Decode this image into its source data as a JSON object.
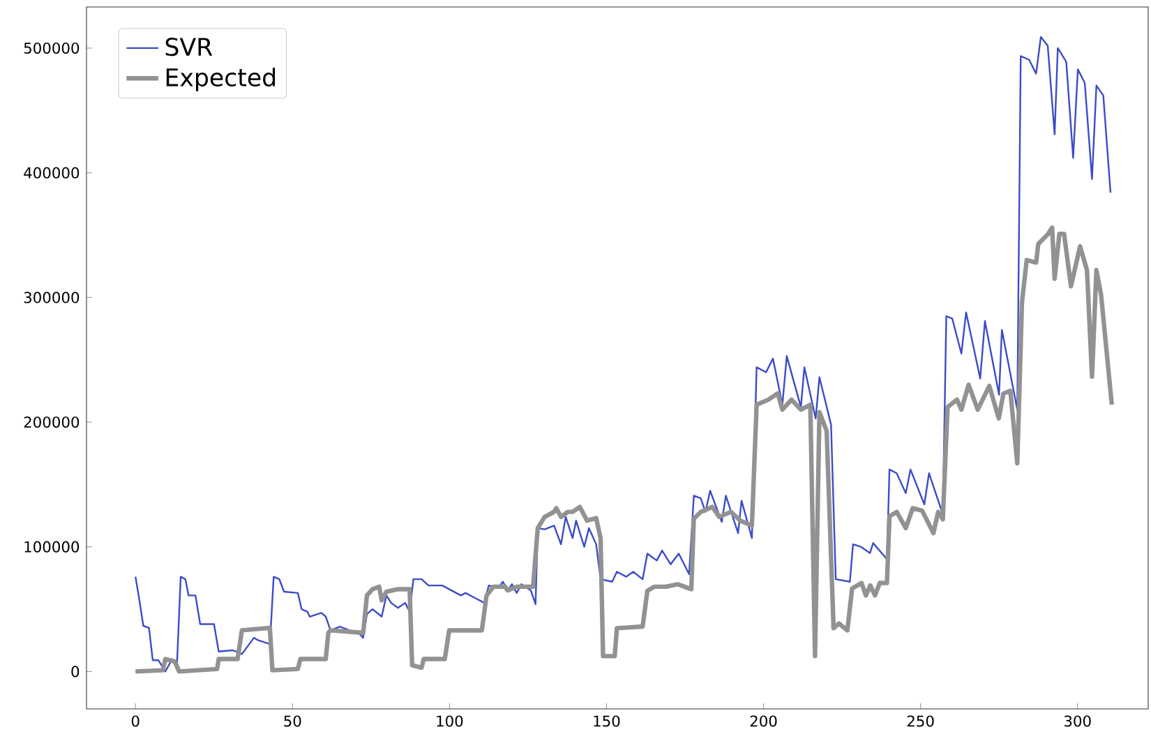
{
  "chart_data": {
    "type": "line",
    "xlim": [
      -15.6,
      322.5
    ],
    "ylim": [
      -30000,
      533000
    ],
    "xticks": [
      0,
      50,
      100,
      150,
      200,
      250,
      300
    ],
    "yticks": [
      0,
      100000,
      200000,
      300000,
      400000,
      500000
    ],
    "legend": "top left",
    "marker": "none",
    "line_style": "solid",
    "grid": false,
    "series": [
      {
        "name": "SVR",
        "color": "#3b4cc8",
        "x": [
          0,
          1,
          2.5,
          4.3,
          5.5,
          7.3,
          9.5,
          11.7,
          13.2,
          14.4,
          15.9,
          16.9,
          19.1,
          20.6,
          25,
          26.5,
          31,
          33.9,
          37.7,
          39.1,
          42.8,
          44,
          45.8,
          47.3,
          51.7,
          52.9,
          54.7,
          55.5,
          59.2,
          60.6,
          62.1,
          65.1,
          68.1,
          71,
          72.5,
          73.7,
          75.5,
          78.4,
          79.9,
          81.4,
          83.6,
          85.9,
          87.3,
          88.5,
          91.1,
          93.3,
          97.7,
          103.6,
          105.1,
          108.1,
          111.1,
          112.5,
          115.5,
          117,
          118.5,
          119.9,
          121.4,
          122.9,
          125.9,
          127.4,
          128.1,
          130.3,
          133.3,
          135.5,
          137,
          139.2,
          140.3,
          142.9,
          144.4,
          146.7,
          148.1,
          151.8,
          153.3,
          156.3,
          158.5,
          161.5,
          163,
          166,
          167.7,
          170.4,
          173,
          176.3,
          177.8,
          180,
          181.5,
          183,
          186.7,
          188,
          191.9,
          193,
          196.3,
          197.8,
          200.8,
          203,
          206,
          207.4,
          211.9,
          213,
          216.6,
          217.8,
          221.5,
          223,
          227.5,
          228.5,
          231,
          233.9,
          234.9,
          239.3,
          240.1,
          242.4,
          245.3,
          246.8,
          251.2,
          252.7,
          257.1,
          258.2,
          260.1,
          263,
          264.5,
          269,
          270.5,
          275,
          275.9,
          280.8,
          281.9,
          284.6,
          286.8,
          288.3,
          290.5,
          292.7,
          293.7,
          296.4,
          298.6,
          300.1,
          302.3,
          304.6,
          306,
          308.2,
          310.5
        ],
        "values": [
          76000,
          61000,
          36600,
          35000,
          9000,
          9000,
          0,
          10000,
          5000,
          76000,
          74000,
          61000,
          61000,
          38000,
          38000,
          16000,
          17000,
          14000,
          27000,
          25000,
          22000,
          76000,
          74000,
          64000,
          63000,
          50000,
          48000,
          44000,
          47000,
          44000,
          33000,
          36000,
          33000,
          31000,
          27000,
          46000,
          50000,
          44000,
          61000,
          55000,
          51000,
          55000,
          48000,
          74000,
          74000,
          69000,
          69000,
          61000,
          63000,
          59000,
          55000,
          69000,
          67000,
          72000,
          65000,
          70000,
          63000,
          70000,
          65000,
          54000,
          115000,
          114000,
          117000,
          102000,
          124000,
          107000,
          121000,
          100000,
          115000,
          102000,
          74000,
          72000,
          80000,
          76000,
          80000,
          74000,
          94500,
          89000,
          97000,
          86000,
          94500,
          78000,
          141000,
          139000,
          128000,
          145000,
          120000,
          141000,
          111000,
          137000,
          107000,
          244000,
          240000,
          251000,
          214000,
          253000,
          212000,
          244000,
          203000,
          236000,
          198000,
          74000,
          72000,
          102000,
          100000,
          95000,
          103000,
          90000,
          162000,
          159000,
          143000,
          162000,
          134000,
          159000,
          126000,
          285000,
          283000,
          255000,
          288000,
          235000,
          281000,
          222000,
          274000,
          210000,
          493600,
          490600,
          479500,
          509000,
          502000,
          430800,
          500000,
          489000,
          412000,
          483000,
          472000,
          395000,
          470000,
          462000,
          384000
        ]
      },
      {
        "name": "Expected",
        "color": "#929292",
        "x": [
          0,
          8.7,
          9.5,
          12.5,
          13.9,
          26,
          26.5,
          32.5,
          33.9,
          42.8,
          43.6,
          51.7,
          52.5,
          60.6,
          61.4,
          62.1,
          72.5,
          73.7,
          75.5,
          77.6,
          78.4,
          79.9,
          83.6,
          87.3,
          88.1,
          91.1,
          91.8,
          98.5,
          99.9,
          110.3,
          111.8,
          114,
          117.7,
          118.5,
          121.4,
          126.6,
          128.1,
          130.3,
          133.3,
          134,
          135.5,
          137.7,
          139.2,
          141.5,
          143.8,
          146.7,
          148.1,
          148.9,
          152.6,
          153.3,
          161.5,
          163,
          165.2,
          168.9,
          172.6,
          174.8,
          177,
          177.8,
          180,
          183.7,
          185.9,
          189.6,
          192.6,
          196.3,
          197.8,
          201.5,
          204.5,
          206,
          208.9,
          211.9,
          214.9,
          216.4,
          217.8,
          220.1,
          222.3,
          224,
          226.7,
          228.2,
          231.2,
          232.6,
          234,
          235.5,
          237,
          239.3,
          240.1,
          242.4,
          245.3,
          247.5,
          250.5,
          254.1,
          255.6,
          257.1,
          258.6,
          261.6,
          263,
          265.3,
          268.2,
          271.9,
          274.9,
          276.4,
          278.6,
          280.8,
          282.3,
          283.8,
          286.8,
          287.5,
          290.5,
          291.9,
          292.7,
          294.2,
          295.7,
          297.9,
          300.8,
          303,
          304.6,
          306,
          307.5,
          310.9
        ],
        "values": [
          0,
          1000,
          10000,
          8000,
          0,
          2000,
          10000,
          10000,
          33000,
          35000,
          1000,
          2000,
          10000,
          10000,
          31000,
          33000,
          31000,
          61000,
          66000,
          68000,
          57000,
          64000,
          66000,
          66000,
          5000,
          3000,
          10000,
          10000,
          33000,
          33000,
          61000,
          68000,
          68000,
          65000,
          68000,
          68000,
          115000,
          124000,
          128000,
          131000,
          124000,
          128000,
          128000,
          132000,
          121000,
          123000,
          107000,
          12300,
          12300,
          34700,
          36000,
          64700,
          68000,
          68000,
          70000,
          68000,
          66000,
          122500,
          128000,
          132000,
          124000,
          128000,
          121000,
          117000,
          214000,
          218000,
          223000,
          210000,
          218000,
          210000,
          214000,
          12300,
          208000,
          193000,
          34700,
          38500,
          33000,
          66500,
          71000,
          61000,
          69000,
          61000,
          71000,
          71000,
          124400,
          128000,
          115000,
          131000,
          129000,
          111000,
          128000,
          122000,
          212000,
          218000,
          210000,
          230000,
          210000,
          229000,
          203000,
          223000,
          225000,
          167000,
          296000,
          330000,
          328000,
          343000,
          350500,
          356000,
          315000,
          351000,
          351000,
          309000,
          341000,
          322000,
          236500,
          322000,
          302000,
          214000
        ]
      }
    ]
  }
}
